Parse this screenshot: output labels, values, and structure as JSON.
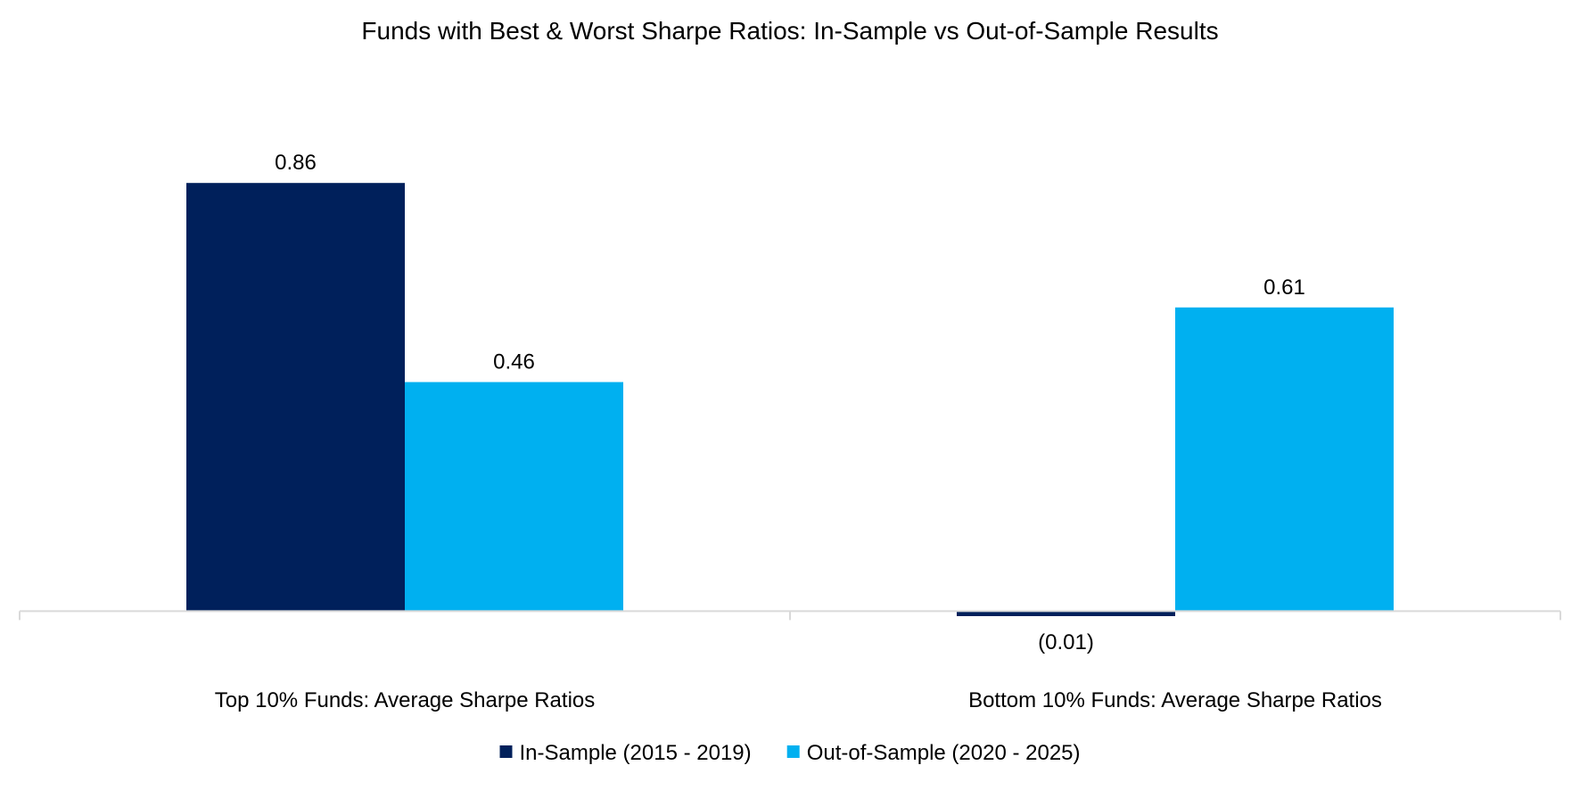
{
  "chart_data": {
    "type": "bar",
    "title": "Funds with Best & Worst Sharpe Ratios: In-Sample vs Out-of-Sample Results",
    "categories": [
      "Top 10% Funds: Average Sharpe Ratios",
      "Bottom 10% Funds: Average Sharpe Ratios"
    ],
    "series": [
      {
        "name": "In-Sample (2015 - 2019)",
        "color": "#00205b",
        "values": [
          0.86,
          -0.01
        ],
        "labels": [
          "0.86",
          "(0.01)"
        ]
      },
      {
        "name": "Out-of-Sample (2020 - 2025)",
        "color": "#00b0f0",
        "values": [
          0.46,
          0.61
        ],
        "labels": [
          "0.46",
          "0.61"
        ]
      }
    ],
    "ylim": [
      -0.0315,
      1.0
    ],
    "grid": false,
    "y_axis_visible": false,
    "legend_position": "bottom"
  }
}
